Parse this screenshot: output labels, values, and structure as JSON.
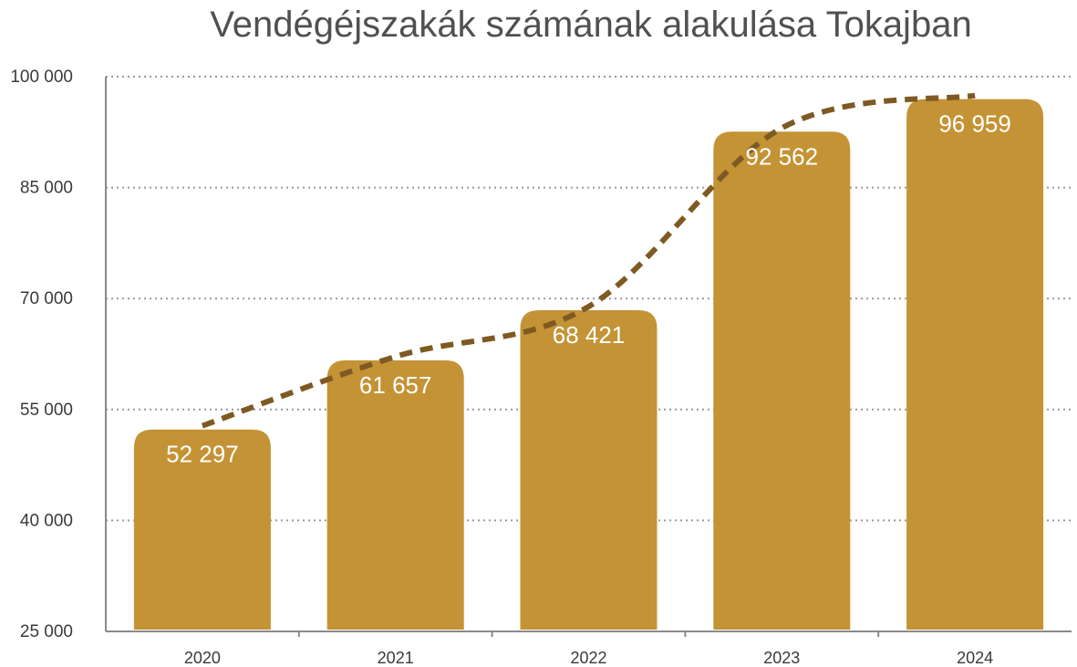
{
  "chart_data": {
    "type": "bar",
    "title": "Vendégéjszakák számának alakulása Tokajban",
    "categories": [
      "2020",
      "2021",
      "2022",
      "2023",
      "2024"
    ],
    "values": [
      52297,
      61657,
      68421,
      92562,
      96959
    ],
    "data_labels": [
      "52 297",
      "61 657",
      "68 421",
      "92 562",
      "96 959"
    ],
    "yticks": [
      25000,
      40000,
      55000,
      70000,
      85000,
      100000
    ],
    "ytick_labels": [
      "25 000",
      "40 000",
      "55 000",
      "70 000",
      "85 000",
      "100 000"
    ],
    "ylim": [
      25000,
      100000
    ],
    "grid": "horizontal dotted",
    "trendline": {
      "style": "dashed",
      "type": "smoothed trend"
    },
    "colors": {
      "bar": "#C49335",
      "trend": "#7E5A23",
      "grid": "#9a9a9a",
      "axis": "#8a8a8a",
      "title": "#505050",
      "label": "#ffffff"
    }
  }
}
